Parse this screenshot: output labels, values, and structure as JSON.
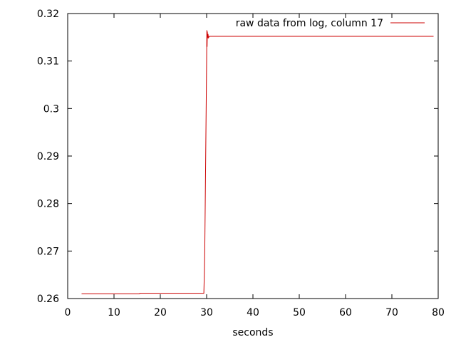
{
  "chart_data": {
    "type": "line",
    "xlabel": "seconds",
    "ylabel": "",
    "xlim": [
      0,
      80
    ],
    "ylim": [
      0.26,
      0.32
    ],
    "x_ticks": [
      0,
      10,
      20,
      30,
      40,
      50,
      60,
      70,
      80
    ],
    "x_tick_labels": [
      "0",
      "10",
      "20",
      "30",
      "40",
      "50",
      "60",
      "70",
      "80"
    ],
    "y_ticks": [
      0.26,
      0.27,
      0.28,
      0.29,
      0.3,
      0.31,
      0.32
    ],
    "y_tick_labels": [
      "0.26",
      "0.27",
      "0.28",
      "0.29",
      "0.3",
      "0.31",
      "0.32"
    ],
    "grid": false,
    "legend_position": "top-right",
    "series": [
      {
        "name": "raw data from log, column 17",
        "color": "#cc0000",
        "x": [
          3.0,
          15.5,
          15.6,
          29.4,
          29.5,
          29.6,
          29.7,
          29.8,
          29.9,
          30.0,
          30.05,
          30.1,
          30.15,
          30.2,
          30.3,
          30.4,
          30.6,
          31.0,
          40.0,
          50.0,
          60.0,
          70.0,
          79.0
        ],
        "y": [
          0.261,
          0.261,
          0.2611,
          0.2611,
          0.265,
          0.27,
          0.28,
          0.29,
          0.3,
          0.31,
          0.3165,
          0.313,
          0.3162,
          0.3148,
          0.3157,
          0.3149,
          0.3152,
          0.3152,
          0.3152,
          0.3152,
          0.3152,
          0.3152,
          0.3152
        ]
      }
    ]
  }
}
